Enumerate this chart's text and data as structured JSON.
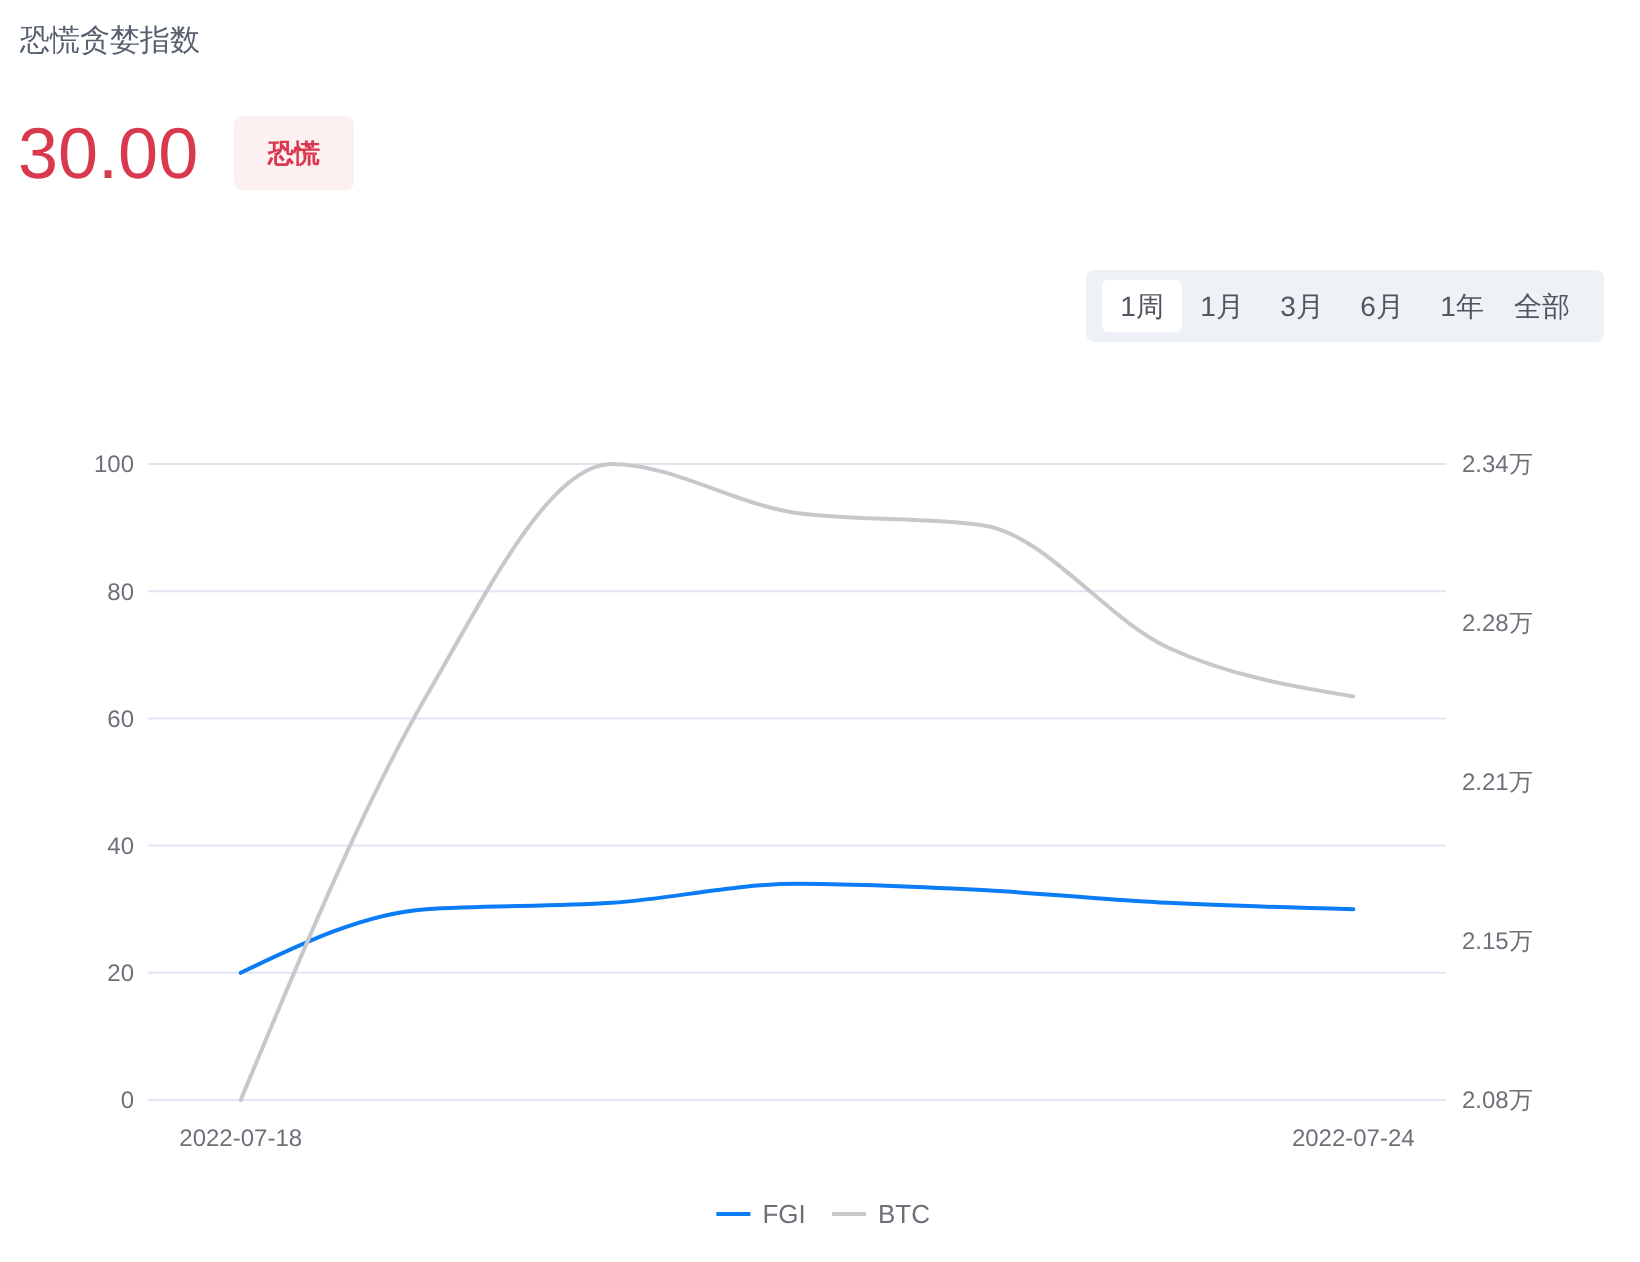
{
  "chart_data": {
    "type": "line",
    "title": "恐慌贪婪指数",
    "annotations": [
      "30.00",
      "恐慌",
      "1周",
      "1月",
      "3月",
      "6月",
      "1年",
      "全部"
    ],
    "categories": [
      "2022-07-18",
      null,
      null,
      null,
      null,
      null,
      "2022-07-24"
    ],
    "series": [
      {
        "name": "FGI",
        "color": "#0a7cf5",
        "values": [
          20,
          30,
          31,
          34,
          33,
          31,
          30
        ]
      },
      {
        "name": "BTC",
        "color": "#c8c8cc",
        "axis": "y2",
        "values": [
          2.08,
          2.245,
          2.34,
          2.32,
          2.315,
          2.265,
          2.245
        ]
      }
    ],
    "ylim": [
      0,
      100
    ],
    "yticks": [
      0,
      20,
      40,
      60,
      80,
      100
    ],
    "y2lim": [
      2.08,
      2.34
    ],
    "y2ticks": [
      {
        "value": 2.08,
        "label": "2.08万"
      },
      {
        "value": 2.145,
        "label": "2.15万"
      },
      {
        "value": 2.21,
        "label": "2.21万"
      },
      {
        "value": 2.275,
        "label": "2.28万"
      },
      {
        "value": 2.34,
        "label": "2.34万"
      }
    ],
    "grid": "y",
    "legend": "bottom"
  }
}
